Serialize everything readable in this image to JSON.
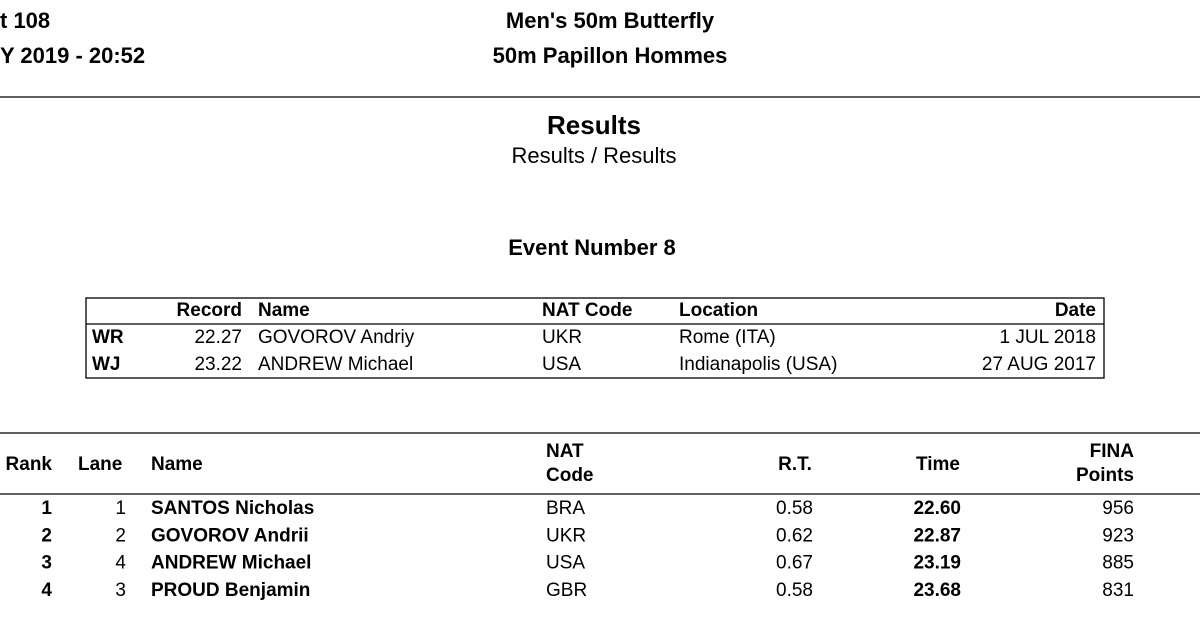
{
  "header": {
    "event_id": "t 108",
    "datetime": "Y 2019 - 20:52",
    "title": "Men's 50m Butterfly",
    "title_fr": "50m Papillon Hommes"
  },
  "section": {
    "title": "Results",
    "subtitle": "Results / Results",
    "event_number": "Event Number 8"
  },
  "records": {
    "columns": [
      "Record",
      "Name",
      "NAT Code",
      "Location",
      "Date"
    ],
    "rows": [
      [
        "WR",
        "22.27",
        "GOVOROV Andriy",
        "UKR",
        "Rome (ITA)",
        "1 JUL 2018"
      ],
      [
        "WJ",
        "23.22",
        "ANDREW Michael",
        "USA",
        "Indianapolis (USA)",
        "27 AUG 2017"
      ]
    ]
  },
  "results": {
    "columns": [
      "Rank",
      "Lane",
      "Name",
      "NAT",
      "Code",
      "R.T.",
      "Time",
      "FINA",
      "Points"
    ],
    "rows": [
      [
        "1",
        "1",
        "SANTOS Nicholas",
        "BRA",
        "0.58",
        "22.60",
        "956"
      ],
      [
        "2",
        "2",
        "GOVOROV Andrii",
        "UKR",
        "0.62",
        "22.87",
        "923"
      ],
      [
        "3",
        "4",
        "ANDREW Michael",
        "USA",
        "0.67",
        "23.19",
        "885"
      ],
      [
        "4",
        "3",
        "PROUD Benjamin",
        "GBR",
        "0.58",
        "23.68",
        "831"
      ]
    ]
  }
}
